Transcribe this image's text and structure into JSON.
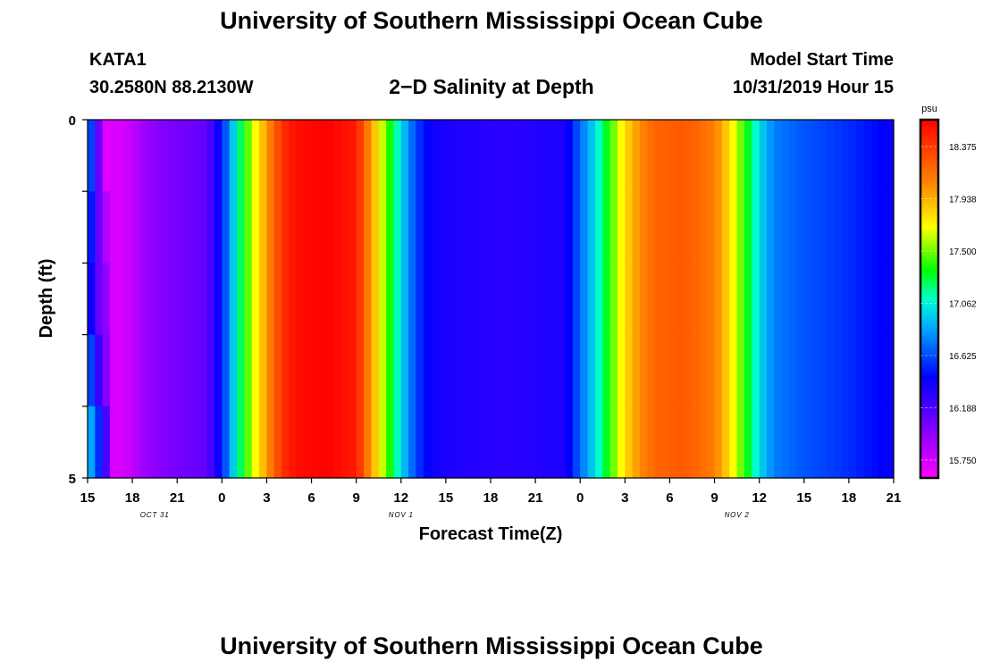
{
  "header": {
    "title": "University of Southern Mississippi Ocean Cube",
    "station": "KATA1",
    "coords": "30.2580N 88.2130W",
    "subtitle": "2−D Salinity at Depth",
    "start_label": "Model Start Time",
    "start_value": "10/31/2019 Hour 15"
  },
  "footer": {
    "title": "University of Southern Mississippi Ocean Cube"
  },
  "chart_data": {
    "type": "heatmap",
    "title": "2-D Salinity at Depth",
    "xlabel": "Forecast Time(Z)",
    "ylabel": "Depth (ft)",
    "ylim": [
      0,
      5
    ],
    "x_hours": [
      0,
      54
    ],
    "y_ticks": [
      "0",
      "5"
    ],
    "x_tick_labels": [
      "15",
      "18",
      "21",
      "0",
      "3",
      "6",
      "9",
      "12",
      "15",
      "18",
      "21",
      "0",
      "3",
      "6",
      "9",
      "12",
      "15",
      "18",
      "21"
    ],
    "date_labels": [
      {
        "text": "OCT 31",
        "hour": 4.5
      },
      {
        "text": "NOV 1",
        "hour": 21
      },
      {
        "text": "NOV 2",
        "hour": 43.5
      }
    ],
    "colorbar": {
      "unit": "psu",
      "min": 15.6,
      "max": 18.6,
      "ticks": [
        "18.375",
        "17.938",
        "17.500",
        "17.062",
        "16.625",
        "16.188",
        "15.750"
      ]
    },
    "depth_rows": 5,
    "salinity_profile": [
      [
        0,
        17.0
      ],
      [
        0.5,
        16.8
      ],
      [
        1.0,
        16.3
      ],
      [
        1.5,
        15.75
      ],
      [
        2,
        15.7
      ],
      [
        3,
        15.8
      ],
      [
        4,
        15.95
      ],
      [
        6,
        16.05
      ],
      [
        8,
        16.12
      ],
      [
        8.5,
        16.3
      ],
      [
        9,
        16.5
      ],
      [
        10,
        17.1
      ],
      [
        11,
        17.6
      ],
      [
        12,
        18.0
      ],
      [
        13,
        18.4
      ],
      [
        14,
        18.55
      ],
      [
        16,
        18.6
      ],
      [
        18,
        18.5
      ],
      [
        19,
        18.0
      ],
      [
        20,
        17.5
      ],
      [
        21,
        17.0
      ],
      [
        22,
        16.6
      ],
      [
        23,
        16.4
      ],
      [
        24,
        16.35
      ],
      [
        28,
        16.3
      ],
      [
        32,
        16.35
      ],
      [
        33,
        16.7
      ],
      [
        34,
        17.0
      ],
      [
        35,
        17.4
      ],
      [
        36,
        17.8
      ],
      [
        37,
        18.05
      ],
      [
        38,
        18.2
      ],
      [
        40,
        18.25
      ],
      [
        42,
        18.1
      ],
      [
        43,
        17.8
      ],
      [
        44,
        17.4
      ],
      [
        45,
        17.0
      ],
      [
        46,
        16.75
      ],
      [
        48,
        16.65
      ],
      [
        51,
        16.55
      ],
      [
        54,
        16.4
      ]
    ],
    "surface_adjust": [
      [
        0,
        [
          16.6,
          16.5,
          16.4,
          16.6,
          16.85
        ]
      ],
      [
        1,
        [
          16.1,
          16.1,
          16.1,
          16.25,
          16.55
        ]
      ],
      [
        2,
        [
          15.7,
          15.85,
          15.95,
          16.0,
          16.2
        ]
      ]
    ]
  }
}
